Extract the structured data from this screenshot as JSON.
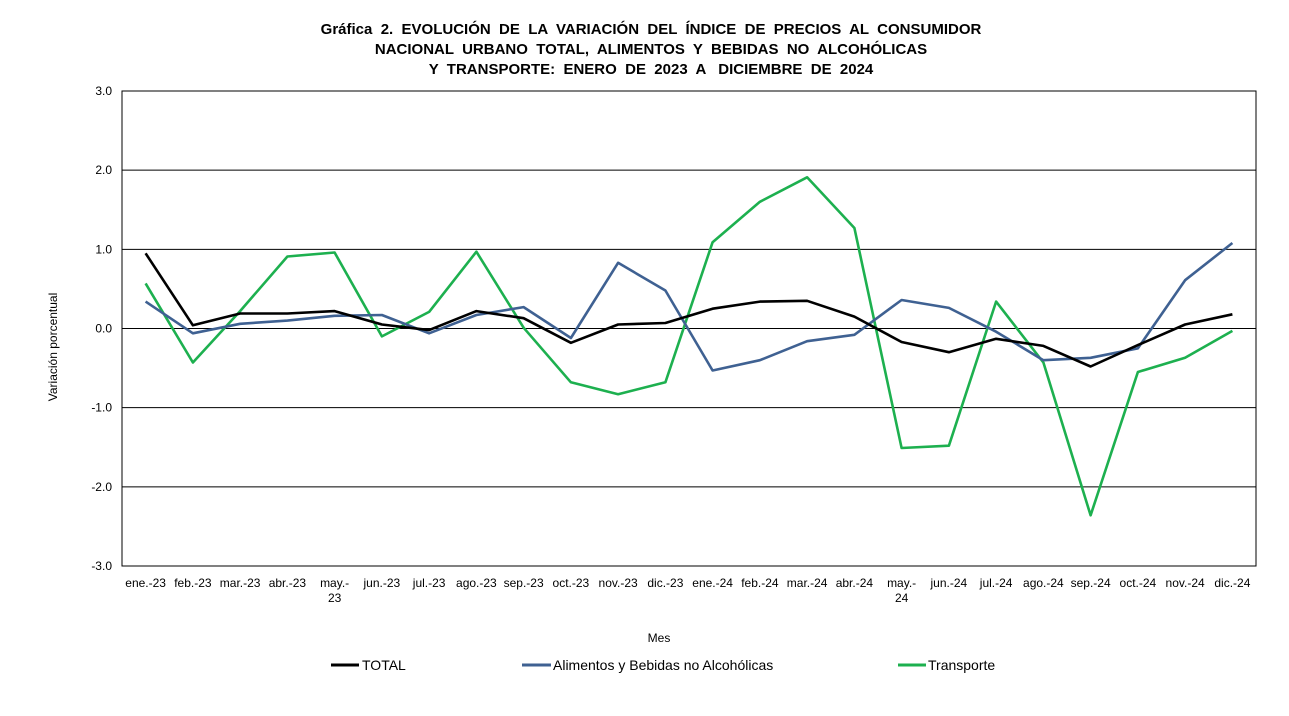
{
  "chart_data": {
    "type": "line",
    "title_lines": [
      "Gráfica  2.  EVOLUCIÓN  DE  LA  VARIACIÓN  DEL  ÍNDICE  DE  PRECIOS  AL  CONSUMIDOR",
      "NACIONAL  URBANO  TOTAL,  ALIMENTOS  Y  BEBIDAS  NO  ALCOHÓLICAS",
      "Y  TRANSPORTE:  ENERO  DE  2023  A   DICIEMBRE  DE  2024"
    ],
    "xlabel": "Mes",
    "ylabel": "Variación  porcentual",
    "ylim": [
      -3.0,
      3.0
    ],
    "yticks": [
      "3.0",
      "2.0",
      "1.0",
      "0.0",
      "-1.0",
      "-2.0",
      "-3.0"
    ],
    "categories": [
      "ene.-23",
      "feb.-23",
      "mar.-23",
      "abr.-23",
      "may.-\n23",
      "jun.-23",
      "jul.-23",
      "ago.-23",
      "sep.-23",
      "oct.-23",
      "nov.-23",
      "dic.-23",
      "ene.-24",
      "feb.-24",
      "mar.-24",
      "abr.-24",
      "may.-\n24",
      "jun.-24",
      "jul.-24",
      "ago.-24",
      "sep.-24",
      "oct.-24",
      "nov.-24",
      "dic.-24"
    ],
    "series": [
      {
        "name": "TOTAL",
        "color": "#000000",
        "values": [
          0.95,
          0.04,
          0.19,
          0.19,
          0.22,
          0.05,
          -0.02,
          0.22,
          0.13,
          -0.18,
          0.05,
          0.07,
          0.25,
          0.34,
          0.35,
          0.15,
          -0.17,
          -0.3,
          -0.13,
          -0.22,
          -0.48,
          -0.21,
          0.05,
          0.18
        ]
      },
      {
        "name": "Alimentos y Bebidas no Alcohólicas",
        "color": "#3F6192",
        "values": [
          0.34,
          -0.06,
          0.06,
          0.1,
          0.16,
          0.17,
          -0.06,
          0.17,
          0.27,
          -0.12,
          0.83,
          0.48,
          -0.53,
          -0.4,
          -0.16,
          -0.08,
          0.36,
          0.26,
          -0.04,
          -0.4,
          -0.37,
          -0.25,
          0.61,
          1.08
        ]
      },
      {
        "name": "Transporte",
        "color": "#1DB04F",
        "values": [
          0.57,
          -0.43,
          0.22,
          0.91,
          0.96,
          -0.1,
          0.21,
          0.97,
          0.01,
          -0.68,
          -0.83,
          -0.68,
          1.09,
          1.6,
          1.91,
          1.27,
          -1.51,
          -1.48,
          0.34,
          -0.43,
          -2.36,
          -0.55,
          -0.37,
          -0.03
        ]
      }
    ]
  }
}
